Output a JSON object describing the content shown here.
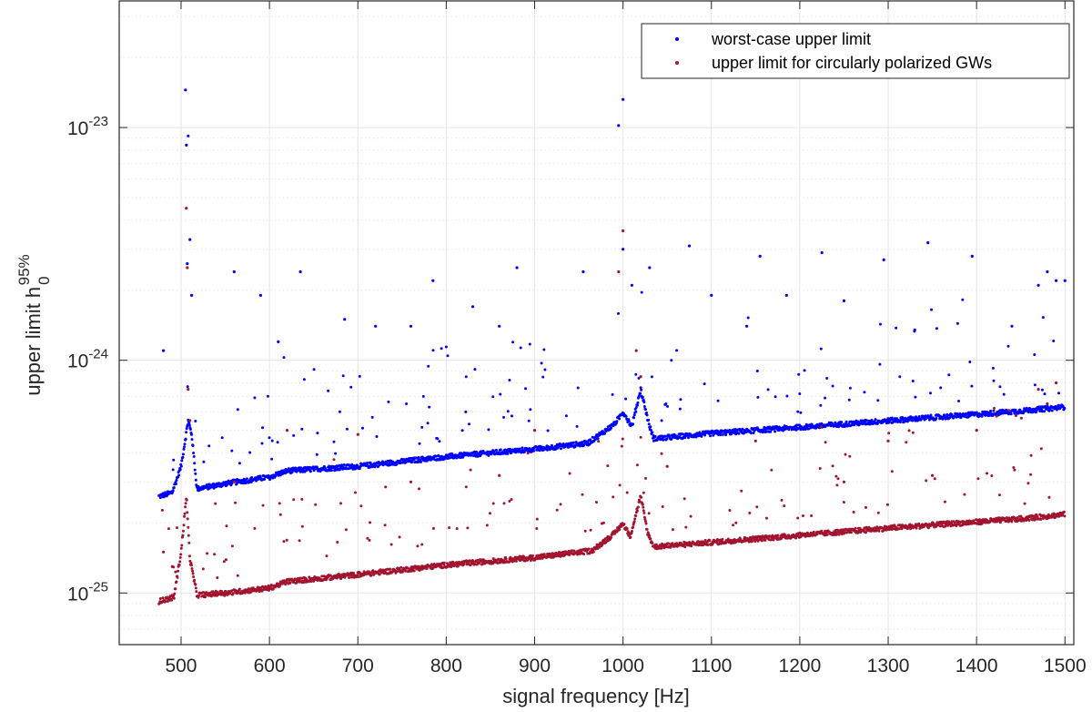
{
  "chart_data": {
    "type": "scatter",
    "title": "",
    "xlabel": "signal frequency [Hz]",
    "ylabel": {
      "text": "upper limit h",
      "subscript": "0",
      "superscript": "95%"
    },
    "xlim": [
      430,
      1510
    ],
    "ylim": [
      6e-26,
      3.5e-23
    ],
    "yscale": "log",
    "xticks": [
      500,
      600,
      700,
      800,
      900,
      1000,
      1100,
      1200,
      1300,
      1400,
      1500
    ],
    "yticks": [
      {
        "value": 1e-25,
        "mantissa": "10",
        "exponent": "-25"
      },
      {
        "value": 1e-24,
        "mantissa": "10",
        "exponent": "-24"
      },
      {
        "value": 1e-23,
        "mantissa": "10",
        "exponent": "-23"
      }
    ],
    "grid": true,
    "minor_grid": true,
    "legend_position": "top-right",
    "colors": {
      "worst_case": "#0000ff",
      "circular": "#a2142f",
      "grid": "#e6e6e6",
      "axis": "#262626"
    },
    "series": [
      {
        "name": "worst-case upper limit",
        "color": "#0000ff",
        "baseline": [
          [
            475,
            2.6e-25
          ],
          [
            490,
            2.7e-25
          ],
          [
            500,
            3.5e-25
          ],
          [
            508,
            5.5e-25
          ],
          [
            512,
            4.8e-25
          ],
          [
            518,
            2.8e-25
          ],
          [
            550,
            2.95e-25
          ],
          [
            600,
            3.15e-25
          ],
          [
            620,
            3.35e-25
          ],
          [
            700,
            3.5e-25
          ],
          [
            800,
            3.85e-25
          ],
          [
            900,
            4.15e-25
          ],
          [
            960,
            4.4e-25
          ],
          [
            990,
            5.3e-25
          ],
          [
            1000,
            6e-25
          ],
          [
            1010,
            5.2e-25
          ],
          [
            1020,
            7.5e-25
          ],
          [
            1030,
            5.2e-25
          ],
          [
            1035,
            4.6e-25
          ],
          [
            1100,
            4.85e-25
          ],
          [
            1200,
            5.15e-25
          ],
          [
            1300,
            5.5e-25
          ],
          [
            1400,
            5.85e-25
          ],
          [
            1460,
            6.1e-25
          ],
          [
            1500,
            6.3e-25
          ]
        ],
        "outliers": [
          [
            505,
            1.45e-23
          ],
          [
            506,
            8.4e-24
          ],
          [
            508,
            9.2e-24
          ],
          [
            510,
            3.3e-24
          ],
          [
            507,
            2.6e-24
          ],
          [
            512,
            1.9e-24
          ],
          [
            560,
            2.4e-24
          ],
          [
            635,
            2.4e-24
          ],
          [
            590,
            1.9e-24
          ],
          [
            610,
            1.2e-24
          ],
          [
            685,
            1.5e-24
          ],
          [
            785,
            2.2e-24
          ],
          [
            830,
            1.7e-24
          ],
          [
            880,
            2.5e-24
          ],
          [
            955,
            2.4e-24
          ],
          [
            995,
            1.02e-23
          ],
          [
            1000,
            1.32e-23
          ],
          [
            1000,
            3e-24
          ],
          [
            1010,
            2.1e-24
          ],
          [
            1030,
            2.5e-24
          ],
          [
            1075,
            3.1e-24
          ],
          [
            1100,
            1.9e-24
          ],
          [
            1155,
            2.8e-24
          ],
          [
            1185,
            1.9e-24
          ],
          [
            1225,
            2.9e-24
          ],
          [
            1250,
            1.8e-24
          ],
          [
            1295,
            2.7e-24
          ],
          [
            1345,
            3.2e-24
          ],
          [
            1395,
            2.8e-24
          ],
          [
            1480,
            2.4e-24
          ],
          [
            1470,
            2.1e-24
          ],
          [
            1490,
            2.2e-24
          ],
          [
            1500,
            2.2e-24
          ],
          [
            720,
            1.4e-24
          ],
          [
            760,
            1.4e-24
          ],
          [
            860,
            1.4e-24
          ],
          [
            1140,
            1.4e-24
          ],
          [
            1330,
            1.35e-24
          ],
          [
            1440,
            1.4e-24
          ],
          [
            480,
            1.1e-24
          ]
        ]
      },
      {
        "name": "upper limit for circularly polarized GWs",
        "color": "#a2142f",
        "baseline": [
          [
            475,
            9.2e-26
          ],
          [
            492,
            9.6e-26
          ],
          [
            500,
            1.5e-25
          ],
          [
            506,
            2.6e-25
          ],
          [
            510,
            1.4e-25
          ],
          [
            518,
            9.8e-26
          ],
          [
            550,
            1e-25
          ],
          [
            600,
            1.05e-25
          ],
          [
            620,
            1.12e-25
          ],
          [
            700,
            1.2e-25
          ],
          [
            800,
            1.32e-25
          ],
          [
            900,
            1.42e-25
          ],
          [
            965,
            1.52e-25
          ],
          [
            990,
            1.8e-25
          ],
          [
            1000,
            2e-25
          ],
          [
            1008,
            1.75e-25
          ],
          [
            1020,
            2.6e-25
          ],
          [
            1028,
            1.8e-25
          ],
          [
            1035,
            1.58e-25
          ],
          [
            1100,
            1.65e-25
          ],
          [
            1200,
            1.77e-25
          ],
          [
            1300,
            1.9e-25
          ],
          [
            1400,
            2.02e-25
          ],
          [
            1460,
            2.1e-25
          ],
          [
            1500,
            2.18e-25
          ]
        ],
        "outliers": [
          [
            506,
            4.5e-24
          ],
          [
            507,
            2.5e-24
          ],
          [
            508,
            7.5e-25
          ],
          [
            510,
            5.5e-25
          ],
          [
            1000,
            3.6e-24
          ],
          [
            995,
            2.4e-24
          ],
          [
            1015,
            1.1e-24
          ],
          [
            1020,
            8.5e-25
          ],
          [
            1470,
            7.5e-25
          ],
          [
            1490,
            8e-25
          ],
          [
            1480,
            6.5e-25
          ],
          [
            620,
            5e-25
          ],
          [
            700,
            4.8e-25
          ],
          [
            900,
            5e-25
          ],
          [
            1150,
            4.5e-25
          ],
          [
            1300,
            4.5e-25
          ],
          [
            1400,
            5e-25
          ],
          [
            560,
            3e-25
          ],
          [
            760,
            3e-25
          ],
          [
            860,
            3.2e-25
          ],
          [
            1050,
            3.5e-25
          ],
          [
            1250,
            3e-25
          ],
          [
            1350,
            3.2e-25
          ],
          [
            480,
            1.5e-25
          ],
          [
            490,
            1.3e-25
          ]
        ]
      }
    ]
  }
}
